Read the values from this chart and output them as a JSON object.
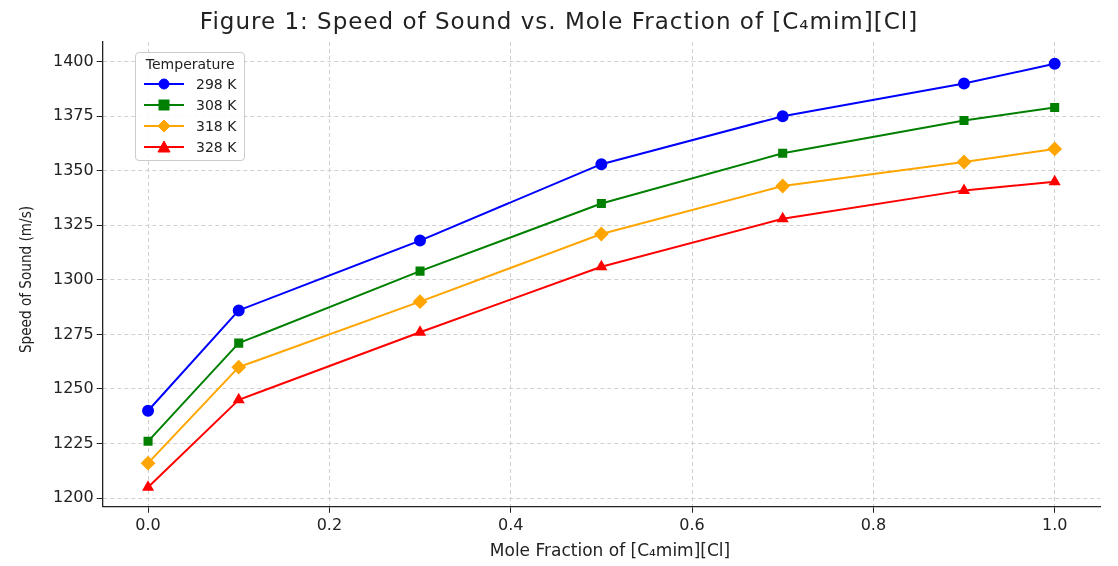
{
  "chart_data": {
    "type": "line",
    "title": "Figure 1: Speed of Sound vs. Mole Fraction of [C₄mim][Cl]",
    "xlabel": "Mole Fraction of [C₄mim][Cl]",
    "ylabel": "Speed of Sound (m/s)",
    "legend_title": "Temperature",
    "x": [
      0,
      0.1,
      0.3,
      0.5,
      0.7,
      0.9,
      1.0
    ],
    "series": [
      {
        "name": "298 K",
        "color": "#0000ff",
        "marker": "circle",
        "values": [
          1240,
          1286,
          1318,
          1353,
          1375,
          1390,
          1399
        ]
      },
      {
        "name": "308 K",
        "color": "#008000",
        "marker": "square",
        "values": [
          1226,
          1271,
          1304,
          1335,
          1358,
          1373,
          1379
        ]
      },
      {
        "name": "318 K",
        "color": "#ffa500",
        "marker": "diamond",
        "values": [
          1216,
          1260,
          1290,
          1321,
          1343,
          1354,
          1360
        ]
      },
      {
        "name": "328 K",
        "color": "#ff0000",
        "marker": "triangle",
        "values": [
          1205,
          1245,
          1276,
          1306,
          1328,
          1341,
          1345
        ]
      }
    ],
    "xlim": [
      -0.05,
      1.05
    ],
    "xticks": [
      {
        "value": 0,
        "label": "0.0"
      },
      0.2,
      0.4,
      0.6,
      0.8,
      {
        "value": 1,
        "label": "1.0"
      }
    ],
    "ylim": [
      1196,
      1409
    ],
    "yticks": [
      1200,
      1225,
      1250,
      1275,
      1300,
      1325,
      1350,
      1375,
      1400
    ],
    "grid": true,
    "legend": "top left",
    "line_style": "solid"
  }
}
